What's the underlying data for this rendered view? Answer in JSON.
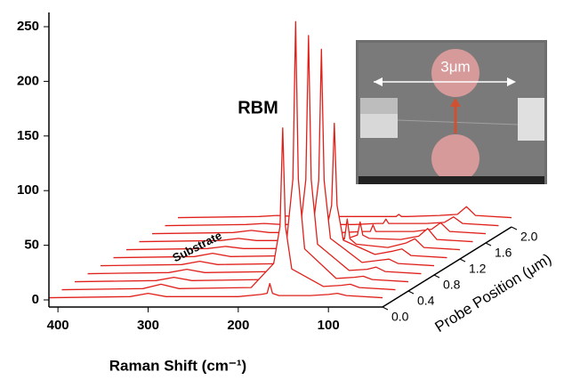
{
  "chart_data": {
    "type": "waterfall",
    "x_label": "Raman Shift (cm⁻¹)",
    "z_label": "Probe Position (μm)",
    "annotations": [
      "RBM",
      "Substrate"
    ],
    "inset_label": "3μm",
    "x": [
      410,
      320,
      300,
      280,
      200,
      175,
      168,
      165,
      162,
      155,
      120,
      100,
      90,
      80,
      40
    ],
    "xlim": [
      410,
      40
    ],
    "xticks": [
      400,
      300,
      200,
      100
    ],
    "ylim": [
      0,
      250
    ],
    "yticks": [
      0,
      50,
      100,
      150,
      200,
      250
    ],
    "zlim": [
      0,
      2
    ],
    "zticks": [
      {
        "value": 0,
        "label": "0.0"
      },
      {
        "value": 0.4,
        "label": "0.4"
      },
      {
        "value": 0.8,
        "label": "0.8"
      },
      {
        "value": 1.2,
        "label": "1.2"
      },
      {
        "value": 1.6,
        "label": "1.6"
      },
      {
        "value": 2,
        "label": "2.0"
      }
    ],
    "color": "#e0201a",
    "series": [
      {
        "position": 0.0,
        "values": [
          2,
          3,
          6,
          3,
          3,
          5,
          6,
          15,
          6,
          4,
          4,
          5,
          6,
          4,
          2
        ]
      },
      {
        "position": 0.2,
        "values": [
          2,
          3,
          7,
          3,
          4,
          26,
          60,
          150,
          60,
          21,
          5,
          6,
          7,
          4,
          2
        ]
      },
      {
        "position": 0.4,
        "values": [
          2,
          3,
          6,
          3,
          4,
          39,
          96,
          240,
          96,
          32,
          5,
          6,
          7,
          4,
          2
        ]
      },
      {
        "position": 0.6,
        "values": [
          2,
          3,
          6,
          3,
          4,
          36,
          88,
          220,
          88,
          29,
          5,
          6,
          8,
          4,
          2
        ]
      },
      {
        "position": 0.8,
        "values": [
          2,
          3,
          6,
          3,
          4,
          33,
          80,
          200,
          80,
          27,
          5,
          7,
          8,
          4,
          2
        ]
      },
      {
        "position": 1.0,
        "values": [
          2,
          3,
          6,
          3,
          4,
          22,
          50,
          125,
          50,
          18,
          5,
          8,
          10,
          4,
          2
        ]
      },
      {
        "position": 1.2,
        "values": [
          2,
          3,
          5,
          3,
          3,
          8,
          12,
          30,
          12,
          7,
          4,
          8,
          12,
          4,
          2
        ]
      },
      {
        "position": 1.4,
        "values": [
          2,
          3,
          5,
          3,
          3,
          6,
          8,
          20,
          8,
          5,
          4,
          7,
          14,
          4,
          2
        ]
      },
      {
        "position": 1.6,
        "values": [
          2,
          3,
          5,
          3,
          3,
          4,
          4,
          10,
          4,
          4,
          4,
          6,
          12,
          4,
          2
        ]
      },
      {
        "position": 1.8,
        "values": [
          2,
          3,
          4,
          3,
          3,
          4,
          4,
          8,
          4,
          4,
          4,
          5,
          10,
          4,
          2
        ]
      },
      {
        "position": 2.0,
        "values": [
          2,
          3,
          4,
          3,
          3,
          3,
          3,
          5,
          3,
          3,
          4,
          5,
          12,
          4,
          2
        ]
      }
    ]
  }
}
